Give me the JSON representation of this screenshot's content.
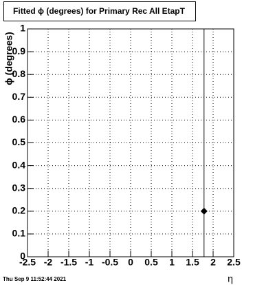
{
  "chart_data": {
    "type": "scatter",
    "title": "Fitted ϕ (degrees) for Primary Rec All EtapT",
    "x_label": "η",
    "y_label": "ϕ (degrees)",
    "timestamp": "Thu Sep  9 11:52:44 2021",
    "x": [
      1.78
    ],
    "values": [
      0.2
    ],
    "yerr": [
      1
    ],
    "color": "#000000",
    "xlim": [
      -2.5,
      2.5
    ],
    "xticks": [
      -2.5,
      -2,
      -1.5,
      -1,
      -0.5,
      0,
      0.5,
      1,
      1.5,
      2,
      2.5
    ],
    "ylim": [
      0,
      1
    ],
    "yticks": [
      0,
      0.1,
      0.2,
      0.3,
      0.4,
      0.5,
      0.6,
      0.7,
      0.8,
      0.9,
      1
    ],
    "grid": true
  }
}
